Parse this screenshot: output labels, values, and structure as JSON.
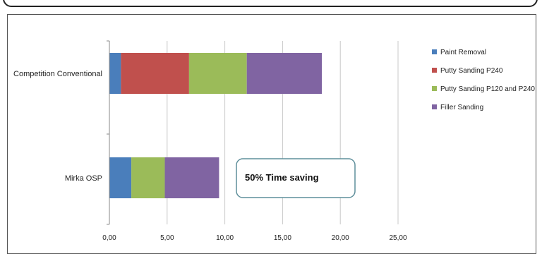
{
  "chart_data": {
    "type": "bar",
    "orientation": "horizontal",
    "stacked": true,
    "title": "",
    "xlabel": "",
    "ylabel": "",
    "categories": [
      "Competition Conventional",
      "Mirka OSP"
    ],
    "series": [
      {
        "name": "Paint Removal",
        "color": "#4a7ebb",
        "values": [
          1.0,
          1.9
        ]
      },
      {
        "name": "Putty Sanding P240",
        "color": "#c0504d",
        "values": [
          5.9,
          0
        ]
      },
      {
        "name": "Putty Sanding P120 and P240",
        "color": "#9bbb59",
        "values": [
          5.0,
          2.9
        ]
      },
      {
        "name": "Filler Sanding",
        "color": "#8064a2",
        "values": [
          6.5,
          4.7
        ]
      }
    ],
    "xlim": [
      0,
      25
    ],
    "xticks": [
      "0,00",
      "5,00",
      "10,00",
      "15,00",
      "20,00",
      "25,00"
    ],
    "grid": true,
    "legend_position": "right",
    "annotation": "50% Time saving"
  }
}
